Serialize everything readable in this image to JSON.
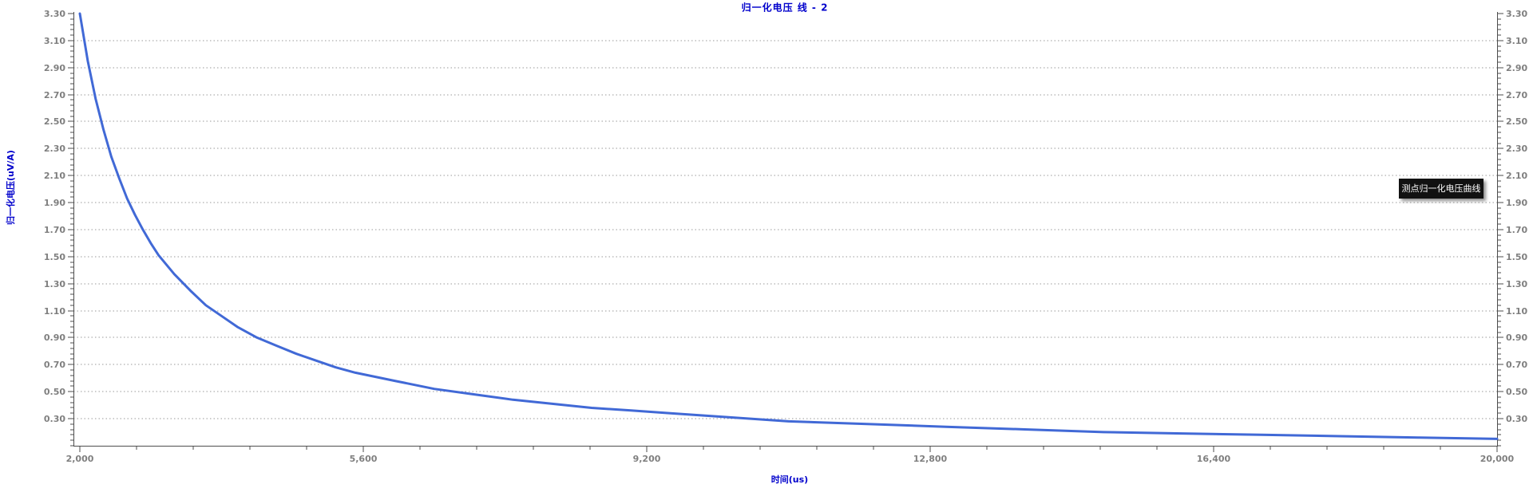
{
  "title": "归一化电压 线 - 2",
  "legend": {
    "label": "测点归一化电压曲线"
  },
  "colors": {
    "title_text": "#0000cc",
    "axis_title_text": "#0000cc",
    "curve": "#4169d6",
    "tick_label": "#7f7f7f",
    "axis": "#4d4d4d",
    "grid": "#999999",
    "legend_bg": "#111111",
    "legend_text": "#ffffff",
    "background": "#ffffff"
  },
  "chart_data": {
    "type": "line",
    "title": "归一化电压 线 - 2",
    "xlabel": "时间(us)",
    "ylabel": "归一化电压(uV/A)",
    "xlim": [
      2000,
      20000
    ],
    "ylim": [
      0.1,
      3.31
    ],
    "grid": "horizontal-dotted",
    "legend_entries": [
      "测点归一化电压曲线"
    ],
    "legend_position": "right-center-overlay",
    "x_ticks": [
      2000,
      5600,
      9200,
      12800,
      16400,
      20000
    ],
    "x_tick_labels": [
      "2,000",
      "5,600",
      "9,200",
      "12,800",
      "16,400",
      "20,000"
    ],
    "x_minor_step": 720,
    "y_ticks": [
      3.3,
      3.1,
      2.9,
      2.7,
      2.5,
      2.3,
      2.1,
      1.9,
      1.7,
      1.5,
      1.3,
      1.1,
      0.9,
      0.7,
      0.5,
      0.3
    ],
    "y_tick_labels": [
      "3.30",
      "3.10",
      "2.90",
      "2.70",
      "2.50",
      "2.30",
      "2.10",
      "1.90",
      "1.70",
      "1.50",
      "1.30",
      "1.10",
      "0.90",
      "0.70",
      "0.50",
      "0.30"
    ],
    "y_minor_step": 0.04,
    "series": [
      {
        "name": "测点归一化电压曲线",
        "x": [
          2000,
          2100,
          2200,
          2300,
          2400,
          2500,
          2600,
          2700,
          2800,
          2900,
          3000,
          3200,
          3400,
          3600,
          3800,
          4000,
          4250,
          4500,
          4750,
          5000,
          5250,
          5500,
          6000,
          6500,
          7000,
          7500,
          8000,
          8500,
          9000,
          9500,
          10000,
          11000,
          12000,
          13000,
          14000,
          15000,
          16000,
          17000,
          18000,
          19000,
          20000
        ],
        "y": [
          3.3,
          2.95,
          2.67,
          2.44,
          2.24,
          2.08,
          1.93,
          1.81,
          1.7,
          1.6,
          1.51,
          1.37,
          1.25,
          1.14,
          1.06,
          0.98,
          0.9,
          0.84,
          0.78,
          0.73,
          0.68,
          0.64,
          0.58,
          0.52,
          0.48,
          0.44,
          0.41,
          0.38,
          0.36,
          0.34,
          0.32,
          0.28,
          0.26,
          0.24,
          0.22,
          0.2,
          0.19,
          0.18,
          0.17,
          0.16,
          0.15
        ]
      }
    ]
  }
}
